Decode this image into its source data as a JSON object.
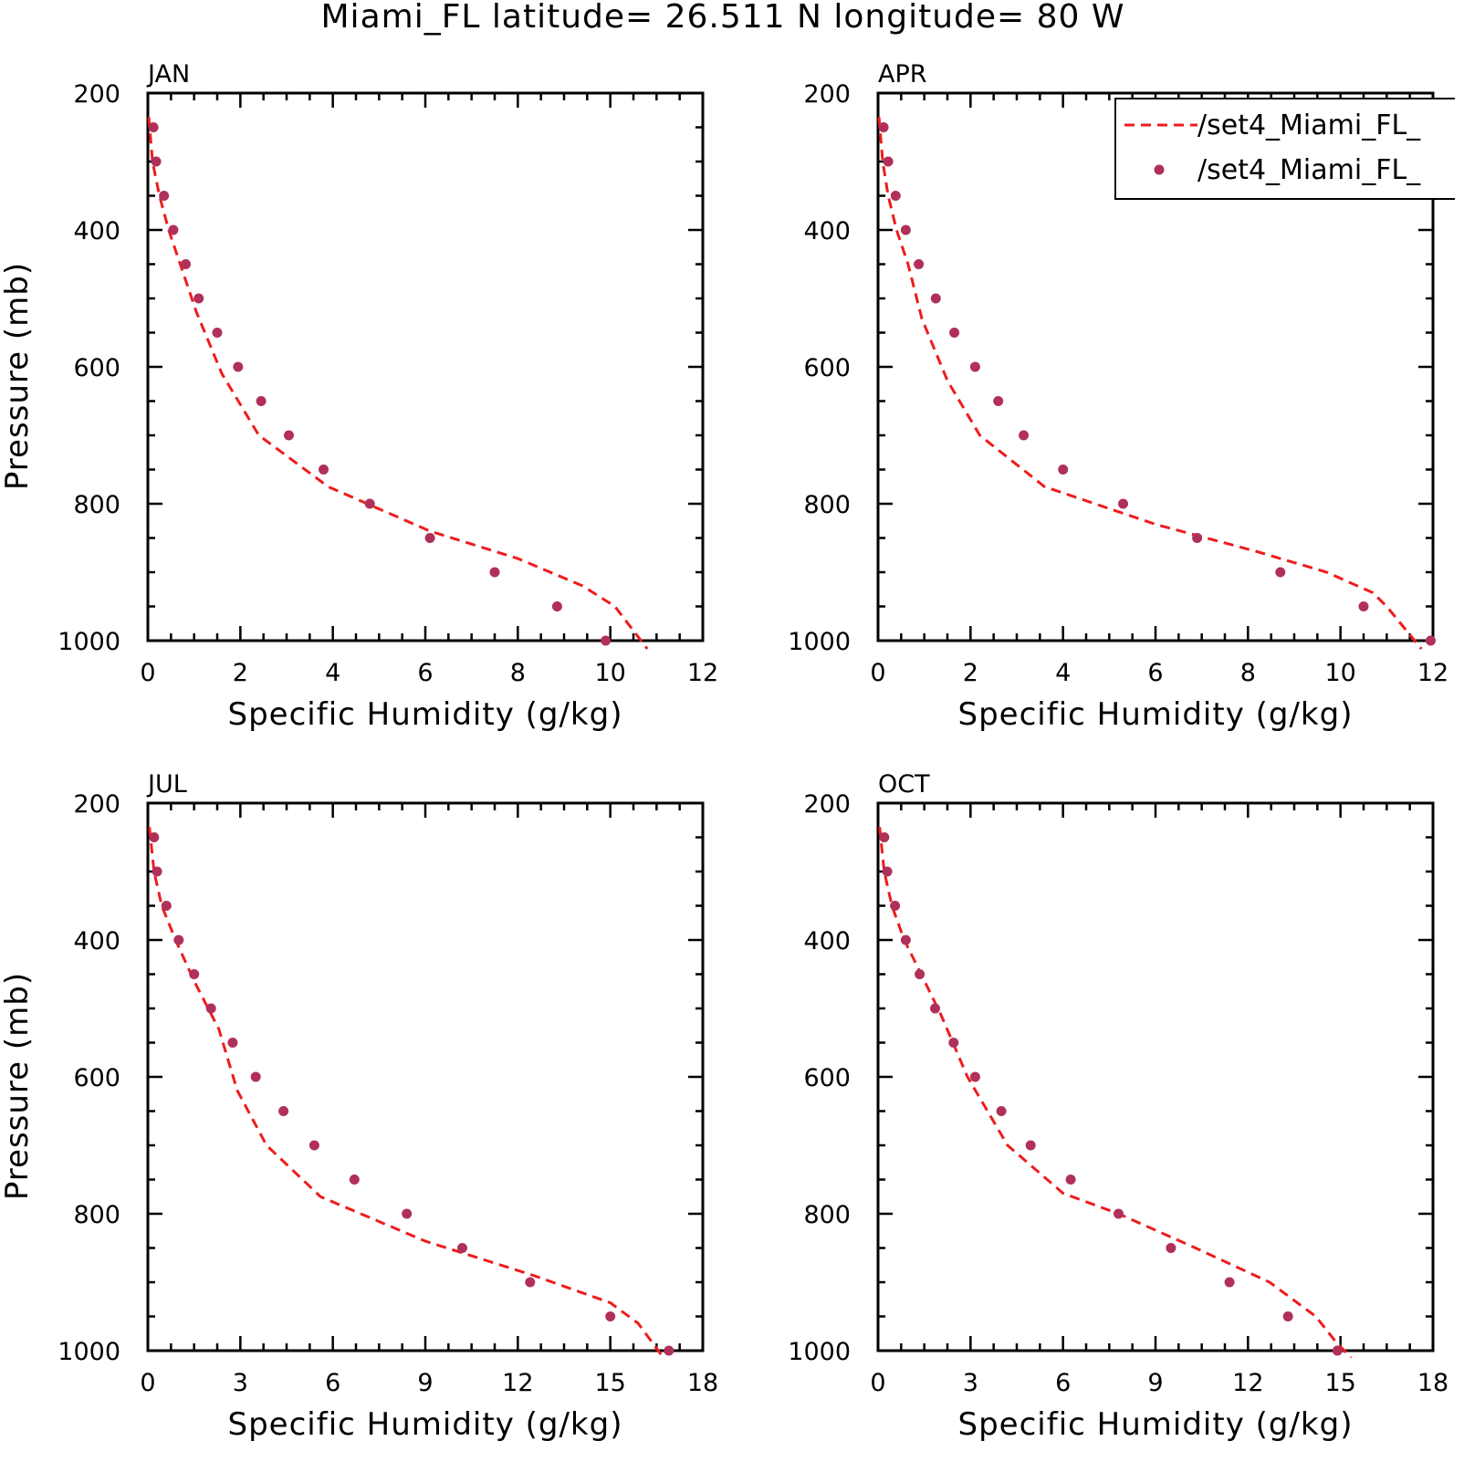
{
  "chart_data": {
    "title": "Miami_FL  latitude= 26.511 N longitude= 80 W",
    "legend": {
      "placement": "top-right",
      "entries": [
        {
          "label": "/set4_Miami_FL_",
          "style": "dashed-line",
          "color": "#ee1c1c"
        },
        {
          "label": "/set4_Miami_FL_",
          "style": "dot",
          "color": "#b0305a"
        }
      ]
    },
    "panels": [
      {
        "type": "line",
        "month": "JAN",
        "xlabel": "Specific Humidity (g/kg)",
        "ylabel": "Pressure (mb)",
        "xlim": [
          0,
          12
        ],
        "ylim": [
          200,
          1000
        ],
        "xticks": [
          0,
          2,
          4,
          6,
          8,
          10,
          12
        ],
        "yticks": [
          200,
          400,
          600,
          800,
          1000
        ],
        "y_inverted": true,
        "grid": false,
        "series": [
          {
            "style": "dashed-line",
            "color": "#ee1c1c",
            "x": [
              0.02,
              0.1,
              0.25,
              0.45,
              0.7,
              1.05,
              1.6,
              2.4,
              3.9,
              6.1,
              8.0,
              9.4,
              10.1,
              10.8
            ],
            "y": [
              235,
              300,
              350,
              400,
              450,
              520,
              610,
              700,
              775,
              840,
              880,
              920,
              950,
              1012
            ]
          },
          {
            "style": "dot",
            "color": "#b0305a",
            "x": [
              0.12,
              0.18,
              0.35,
              0.55,
              0.82,
              1.1,
              1.5,
              1.95,
              2.45,
              3.05,
              3.8,
              4.8,
              6.1,
              7.5,
              8.85,
              9.9
            ],
            "y": [
              250,
              300,
              350,
              400,
              450,
              500,
              550,
              600,
              650,
              700,
              750,
              800,
              850,
              900,
              950,
              1000
            ]
          }
        ]
      },
      {
        "type": "line",
        "month": "APR",
        "xlabel": "Specific Humidity (g/kg)",
        "ylabel": "",
        "xlim": [
          0,
          12
        ],
        "ylim": [
          200,
          1000
        ],
        "xticks": [
          0,
          2,
          4,
          6,
          8,
          10,
          12
        ],
        "yticks": [
          200,
          400,
          600,
          800,
          1000
        ],
        "y_inverted": true,
        "grid": false,
        "series": [
          {
            "style": "dashed-line",
            "color": "#ee1c1c",
            "x": [
              0.02,
              0.1,
              0.22,
              0.4,
              0.65,
              0.95,
              1.5,
              2.2,
              3.6,
              6.0,
              8.2,
              9.7,
              10.7,
              11.0,
              11.75
            ],
            "y": [
              235,
              300,
              350,
              400,
              450,
              530,
              620,
              700,
              775,
              830,
              870,
              900,
              930,
              950,
              1012
            ]
          },
          {
            "style": "dot",
            "color": "#b0305a",
            "x": [
              0.12,
              0.22,
              0.38,
              0.6,
              0.88,
              1.25,
              1.65,
              2.1,
              2.6,
              3.15,
              4.0,
              5.3,
              6.9,
              8.7,
              10.5,
              11.95
            ],
            "y": [
              250,
              300,
              350,
              400,
              450,
              500,
              550,
              600,
              650,
              700,
              750,
              800,
              850,
              900,
              950,
              1000
            ]
          }
        ]
      },
      {
        "type": "line",
        "month": "JUL",
        "xlabel": "Specific Humidity (g/kg)",
        "ylabel": "Pressure (mb)",
        "xlim": [
          0,
          18
        ],
        "ylim": [
          200,
          1000
        ],
        "xticks": [
          0,
          3,
          6,
          9,
          12,
          15,
          18
        ],
        "yticks": [
          200,
          400,
          600,
          800,
          1000
        ],
        "y_inverted": true,
        "grid": false,
        "series": [
          {
            "style": "dashed-line",
            "color": "#ee1c1c",
            "x": [
              0.05,
              0.2,
              0.45,
              0.9,
              1.5,
              2.3,
              2.9,
              3.85,
              5.6,
              9.0,
              12.5,
              15.0,
              15.9,
              16.75
            ],
            "y": [
              235,
              300,
              350,
              400,
              460,
              530,
              620,
              700,
              775,
              840,
              890,
              930,
              960,
              1012
            ]
          },
          {
            "style": "dot",
            "color": "#b0305a",
            "x": [
              0.2,
              0.3,
              0.6,
              1.0,
              1.5,
              2.05,
              2.75,
              3.5,
              4.4,
              5.4,
              6.7,
              8.4,
              10.2,
              12.4,
              15.0,
              16.9
            ],
            "y": [
              250,
              300,
              350,
              400,
              450,
              500,
              550,
              600,
              650,
              700,
              750,
              800,
              850,
              900,
              950,
              1000
            ]
          }
        ]
      },
      {
        "type": "line",
        "month": "OCT",
        "xlabel": "Specific Humidity (g/kg)",
        "ylabel": "",
        "xlim": [
          0,
          18
        ],
        "ylim": [
          200,
          1000
        ],
        "xticks": [
          0,
          3,
          6,
          9,
          12,
          15,
          18
        ],
        "yticks": [
          200,
          400,
          600,
          800,
          1000
        ],
        "y_inverted": true,
        "grid": false,
        "series": [
          {
            "style": "dashed-line",
            "color": "#ee1c1c",
            "x": [
              0.05,
              0.2,
              0.45,
              0.85,
              1.4,
              2.05,
              2.9,
              4.2,
              6.0,
              7.8,
              10.3,
              12.7,
              14.2,
              14.9,
              15.35
            ],
            "y": [
              235,
              300,
              350,
              400,
              450,
              510,
              600,
              700,
              770,
              800,
              850,
              900,
              950,
              990,
              1010
            ]
          },
          {
            "style": "dot",
            "color": "#b0305a",
            "x": [
              0.2,
              0.3,
              0.55,
              0.9,
              1.35,
              1.85,
              2.45,
              3.15,
              4.0,
              4.95,
              6.25,
              7.8,
              9.5,
              11.4,
              13.3,
              14.9
            ],
            "y": [
              250,
              300,
              350,
              400,
              450,
              500,
              550,
              600,
              650,
              700,
              750,
              800,
              850,
              900,
              950,
              1000
            ]
          }
        ]
      }
    ]
  }
}
